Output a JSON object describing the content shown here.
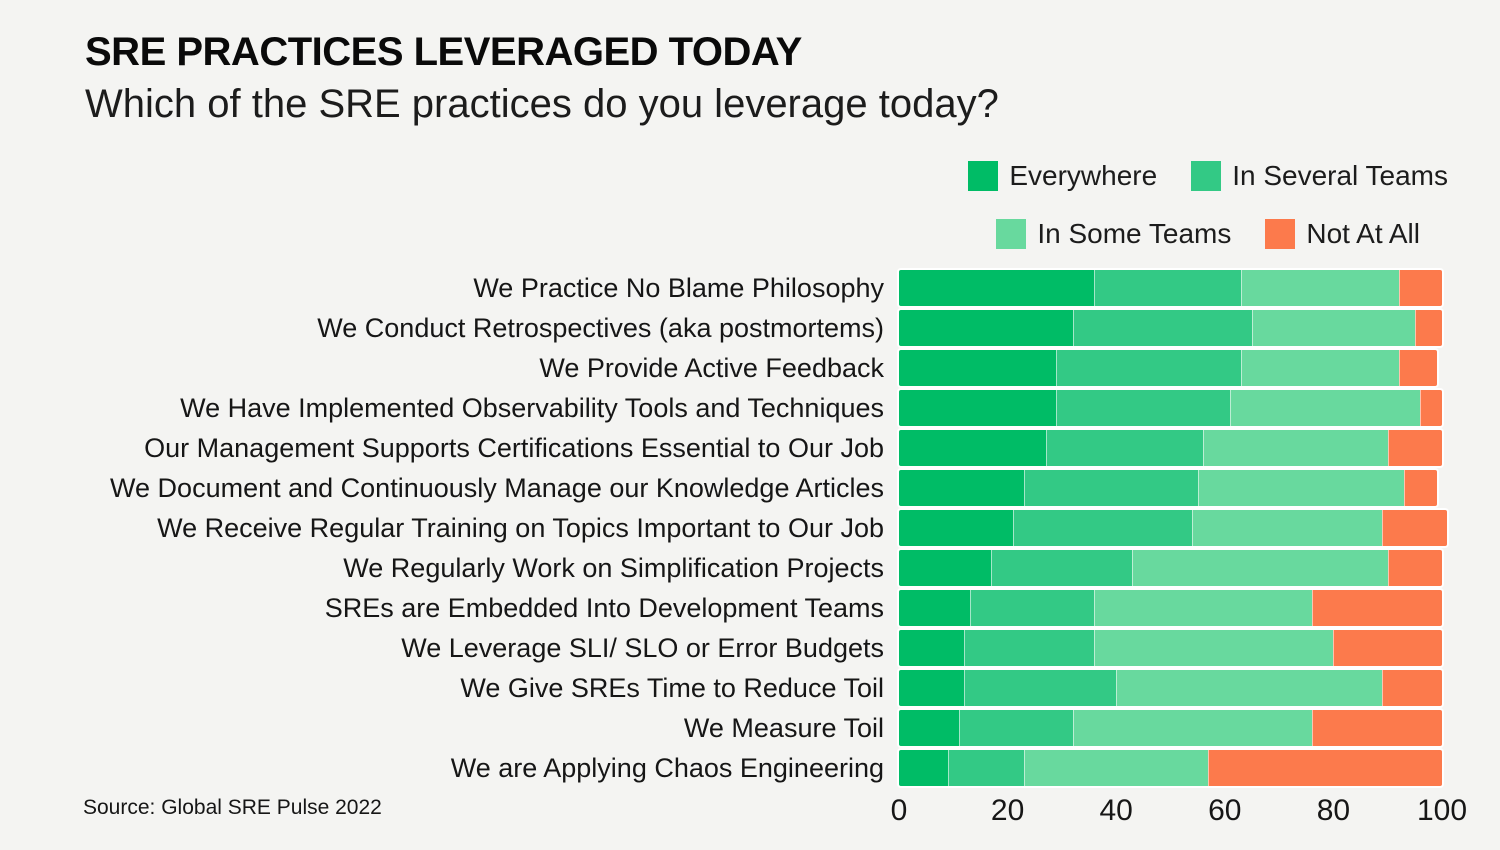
{
  "header": {
    "title": "SRE PRACTICES LEVERAGED TODAY",
    "subtitle": "Which of the SRE practices do you leverage today?"
  },
  "source": "Source: Global SRE Pulse 2022",
  "colors": {
    "background": "#F4F4F2",
    "text": "#161616",
    "everywhere": "#00BC66",
    "in_several_teams": "#33C985",
    "in_some_teams": "#68D99E",
    "not_at_all": "#FC7A4C"
  },
  "legend": {
    "rows": [
      [
        {
          "label": "Everywhere",
          "color": "everywhere"
        },
        {
          "label": "In Several Teams",
          "color": "in_several_teams"
        }
      ],
      [
        {
          "label": "In Some Teams",
          "color": "in_some_teams"
        },
        {
          "label": "Not At All",
          "color": "not_at_all"
        }
      ]
    ]
  },
  "chart_data": {
    "type": "bar",
    "orientation": "horizontal-stacked",
    "title": "SRE PRACTICES LEVERAGED TODAY",
    "subtitle": "Which of the SRE practices do you leverage today?",
    "xlabel": "",
    "ylabel": "",
    "xlim": [
      0,
      100
    ],
    "xticks": [
      0,
      20,
      40,
      60,
      80,
      100
    ],
    "grid": false,
    "legend_position": "top-right",
    "categories": [
      "We Practice No Blame Philosophy",
      "We Conduct Retrospectives (aka postmortems)",
      "We Provide Active Feedback",
      "We Have Implemented Observability Tools and Techniques",
      "Our Management Supports Certifications Essential to Our Job",
      "We Document and Continuously Manage our Knowledge Articles",
      "We Receive Regular Training on Topics Important to Our Job",
      "We Regularly Work on Simplification Projects",
      "SREs are Embedded Into Development Teams",
      "We Leverage SLI/ SLO or Error Budgets",
      "We Give SREs Time to Reduce Toil",
      "We Measure Toil",
      "We are Applying Chaos Engineering"
    ],
    "series": [
      {
        "name": "Everywhere",
        "color": "#00BC66",
        "values": [
          36,
          32,
          29,
          29,
          27,
          23,
          21,
          17,
          13,
          12,
          12,
          11,
          9
        ]
      },
      {
        "name": "In Several Teams",
        "color": "#33C985",
        "values": [
          27,
          33,
          34,
          32,
          29,
          32,
          33,
          26,
          23,
          24,
          28,
          21,
          14
        ]
      },
      {
        "name": "In Some Teams",
        "color": "#68D99E",
        "values": [
          29,
          30,
          29,
          35,
          34,
          38,
          35,
          47,
          40,
          44,
          49,
          44,
          34
        ]
      },
      {
        "name": "Not At All",
        "color": "#FC7A4C",
        "values": [
          8,
          5,
          7,
          4,
          10,
          6,
          12,
          10,
          24,
          20,
          11,
          24,
          43
        ]
      }
    ]
  }
}
